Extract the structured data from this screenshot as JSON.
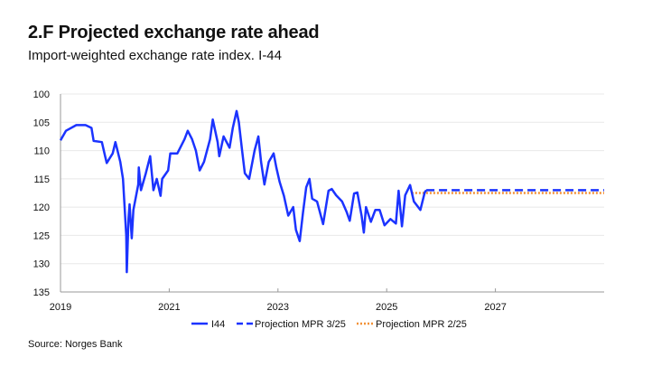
{
  "title": "2.F Projected exchange rate ahead",
  "subtitle": "Import-weighted exchange rate index. I-44",
  "source": "Source: Norges Bank",
  "chart_data": {
    "type": "line",
    "title": "2.F Projected exchange rate ahead",
    "subtitle": "Import-weighted exchange rate index. I-44",
    "xlim": [
      2019,
      2029
    ],
    "ylim": [
      100,
      135
    ],
    "y_inverted": true,
    "grid": true,
    "legend_position": "bottom",
    "x_ticks": [
      "2019",
      "2021",
      "2023",
      "2025",
      "2027"
    ],
    "x_tick_values": [
      2019,
      2021,
      2023,
      2025,
      2027
    ],
    "y_ticks": [
      "100",
      "105",
      "110",
      "115",
      "120",
      "125",
      "130",
      "135"
    ],
    "y_tick_values": [
      100,
      105,
      110,
      115,
      120,
      125,
      130,
      135
    ],
    "colors": {
      "i44": "#1b33ff",
      "mpr325": "#1b33ff",
      "mpr225": "#f39237"
    },
    "series": [
      {
        "name": "I44",
        "style": "solid",
        "x": [
          2019.0,
          2019.1,
          2019.29,
          2019.46,
          2019.57,
          2019.61,
          2019.76,
          2019.82,
          2019.85,
          2019.96,
          2020.01,
          2020.1,
          2020.15,
          2020.21,
          2020.22,
          2020.25,
          2020.27,
          2020.31,
          2020.34,
          2020.43,
          2020.44,
          2020.48,
          2020.57,
          2020.65,
          2020.71,
          2020.77,
          2020.84,
          2020.87,
          2020.98,
          2021.02,
          2021.15,
          2021.28,
          2021.34,
          2021.42,
          2021.49,
          2021.56,
          2021.64,
          2021.75,
          2021.8,
          2021.89,
          2021.92,
          2022.0,
          2022.11,
          2022.17,
          2022.24,
          2022.28,
          2022.34,
          2022.39,
          2022.47,
          2022.57,
          2022.64,
          2022.69,
          2022.75,
          2022.83,
          2022.92,
          2022.97,
          2023.03,
          2023.11,
          2023.19,
          2023.28,
          2023.33,
          2023.4,
          2023.46,
          2023.52,
          2023.58,
          2023.63,
          2023.72,
          2023.83,
          2023.93,
          2023.99,
          2024.07,
          2024.18,
          2024.26,
          2024.32,
          2024.4,
          2024.46,
          2024.54,
          2024.58,
          2024.62,
          2024.71,
          2024.79,
          2024.87,
          2024.96,
          2025.07,
          2025.17,
          2025.22,
          2025.28,
          2025.34,
          2025.43,
          2025.5,
          2025.62,
          2025.7,
          2025.73
        ],
        "values": [
          108.2,
          106.5,
          105.5,
          105.5,
          106,
          108.3,
          108.5,
          111,
          112.2,
          110.5,
          108.5,
          112,
          115,
          125,
          131.5,
          122,
          119.5,
          125.5,
          120.5,
          116,
          113,
          117,
          114,
          111,
          117,
          115,
          118,
          115,
          113.5,
          110.5,
          110.5,
          108,
          106.5,
          108,
          110,
          113.5,
          112,
          108,
          104.5,
          108.5,
          111,
          107.5,
          109.5,
          106,
          103,
          105,
          110,
          114,
          115,
          110,
          107.5,
          112,
          116,
          112,
          110.5,
          113,
          115.5,
          118,
          121.5,
          120,
          124,
          126,
          121,
          116.5,
          115,
          118.5,
          119,
          123,
          117.1,
          116.8,
          117.9,
          119,
          120.8,
          122.4,
          117.6,
          117.4,
          121.6,
          124.5,
          120,
          122.6,
          120.5,
          120.5,
          123.2,
          122.1,
          122.9,
          117.1,
          123.4,
          117.9,
          116.1,
          119,
          120.5,
          117.4,
          117.0
        ]
      },
      {
        "name": "Projection MPR 3/25",
        "style": "dashed",
        "x": [
          2025.73,
          2029.0
        ],
        "values": [
          117.0,
          117.0
        ]
      },
      {
        "name": "Projection MPR 2/25",
        "style": "dotted",
        "x": [
          2025.46,
          2029.0
        ],
        "values": [
          117.5,
          117.5
        ]
      }
    ]
  }
}
